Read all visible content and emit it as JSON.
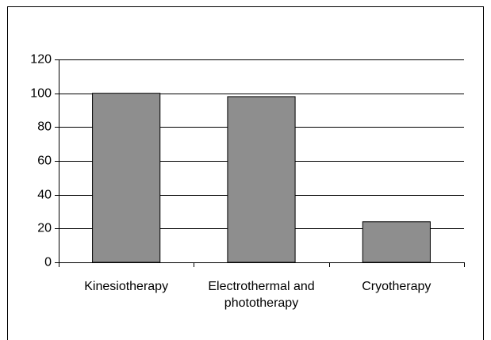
{
  "chart_data": {
    "type": "bar",
    "categories": [
      "Kinesiotherapy",
      "Electrothermal and phototherapy",
      "Cryotherapy"
    ],
    "values": [
      100,
      98,
      24
    ],
    "color": "#8e8e8e",
    "ylim": [
      0,
      120
    ],
    "yticks": [
      0,
      20,
      40,
      60,
      80,
      100,
      120
    ],
    "grid": true
  }
}
